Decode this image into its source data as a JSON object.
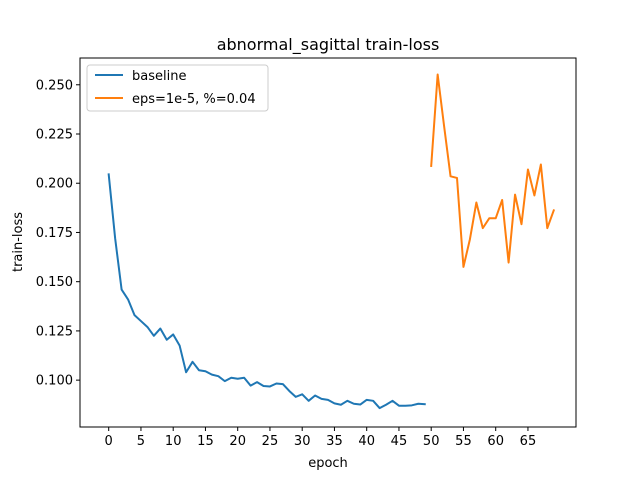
{
  "chart_data": {
    "type": "line",
    "title": "abnormal_sagittal train-loss",
    "xlabel": "epoch",
    "ylabel": "train-loss",
    "xlim": [
      -4.45,
      72.45
    ],
    "ylim": [
      0.0762,
      0.2636
    ],
    "xticks": [
      0,
      5,
      10,
      15,
      20,
      25,
      30,
      35,
      40,
      45,
      50,
      55,
      60,
      65
    ],
    "yticks": [
      0.1,
      0.125,
      0.15,
      0.175,
      0.2,
      0.225,
      0.25
    ],
    "ytick_labels": [
      "0.100",
      "0.125",
      "0.150",
      "0.175",
      "0.200",
      "0.225",
      "0.250"
    ],
    "grid": false,
    "legend_position": "upper-left",
    "series": [
      {
        "name": "baseline",
        "color": "#1f77b4",
        "x": [
          0,
          1,
          2,
          3,
          4,
          5,
          6,
          7,
          8,
          9,
          10,
          11,
          12,
          13,
          14,
          15,
          16,
          17,
          18,
          19,
          20,
          21,
          22,
          23,
          24,
          25,
          26,
          27,
          28,
          29,
          30,
          31,
          32,
          33,
          34,
          35,
          36,
          37,
          38,
          39,
          40,
          41,
          42,
          43,
          44,
          45,
          46,
          47,
          48,
          49
        ],
        "y": [
          0.2045,
          0.172,
          0.146,
          0.141,
          0.133,
          0.13,
          0.127,
          0.1225,
          0.1262,
          0.1205,
          0.1232,
          0.1175,
          0.104,
          0.1093,
          0.105,
          0.1045,
          0.1028,
          0.102,
          0.0995,
          0.1012,
          0.1007,
          0.1012,
          0.0972,
          0.099,
          0.097,
          0.0968,
          0.0983,
          0.098,
          0.0945,
          0.0915,
          0.0928,
          0.0895,
          0.0922,
          0.0905,
          0.09,
          0.0882,
          0.0875,
          0.0895,
          0.088,
          0.0876,
          0.09,
          0.0895,
          0.0858,
          0.0875,
          0.0895,
          0.087,
          0.087,
          0.0872,
          0.088,
          0.0878
        ]
      },
      {
        "name": "eps=1e-5, %=0.04",
        "color": "#ff7f0e",
        "x": [
          50,
          51,
          52,
          53,
          54,
          55,
          56,
          57,
          58,
          59,
          60,
          61,
          62,
          63,
          64,
          65,
          66,
          67,
          68,
          69
        ],
        "y": [
          0.2088,
          0.2552,
          0.229,
          0.2035,
          0.2027,
          0.1575,
          0.1715,
          0.1902,
          0.1772,
          0.1822,
          0.1822,
          0.1915,
          0.1597,
          0.1942,
          0.1792,
          0.207,
          0.1938,
          0.2095,
          0.1772,
          0.1862
        ]
      }
    ]
  }
}
